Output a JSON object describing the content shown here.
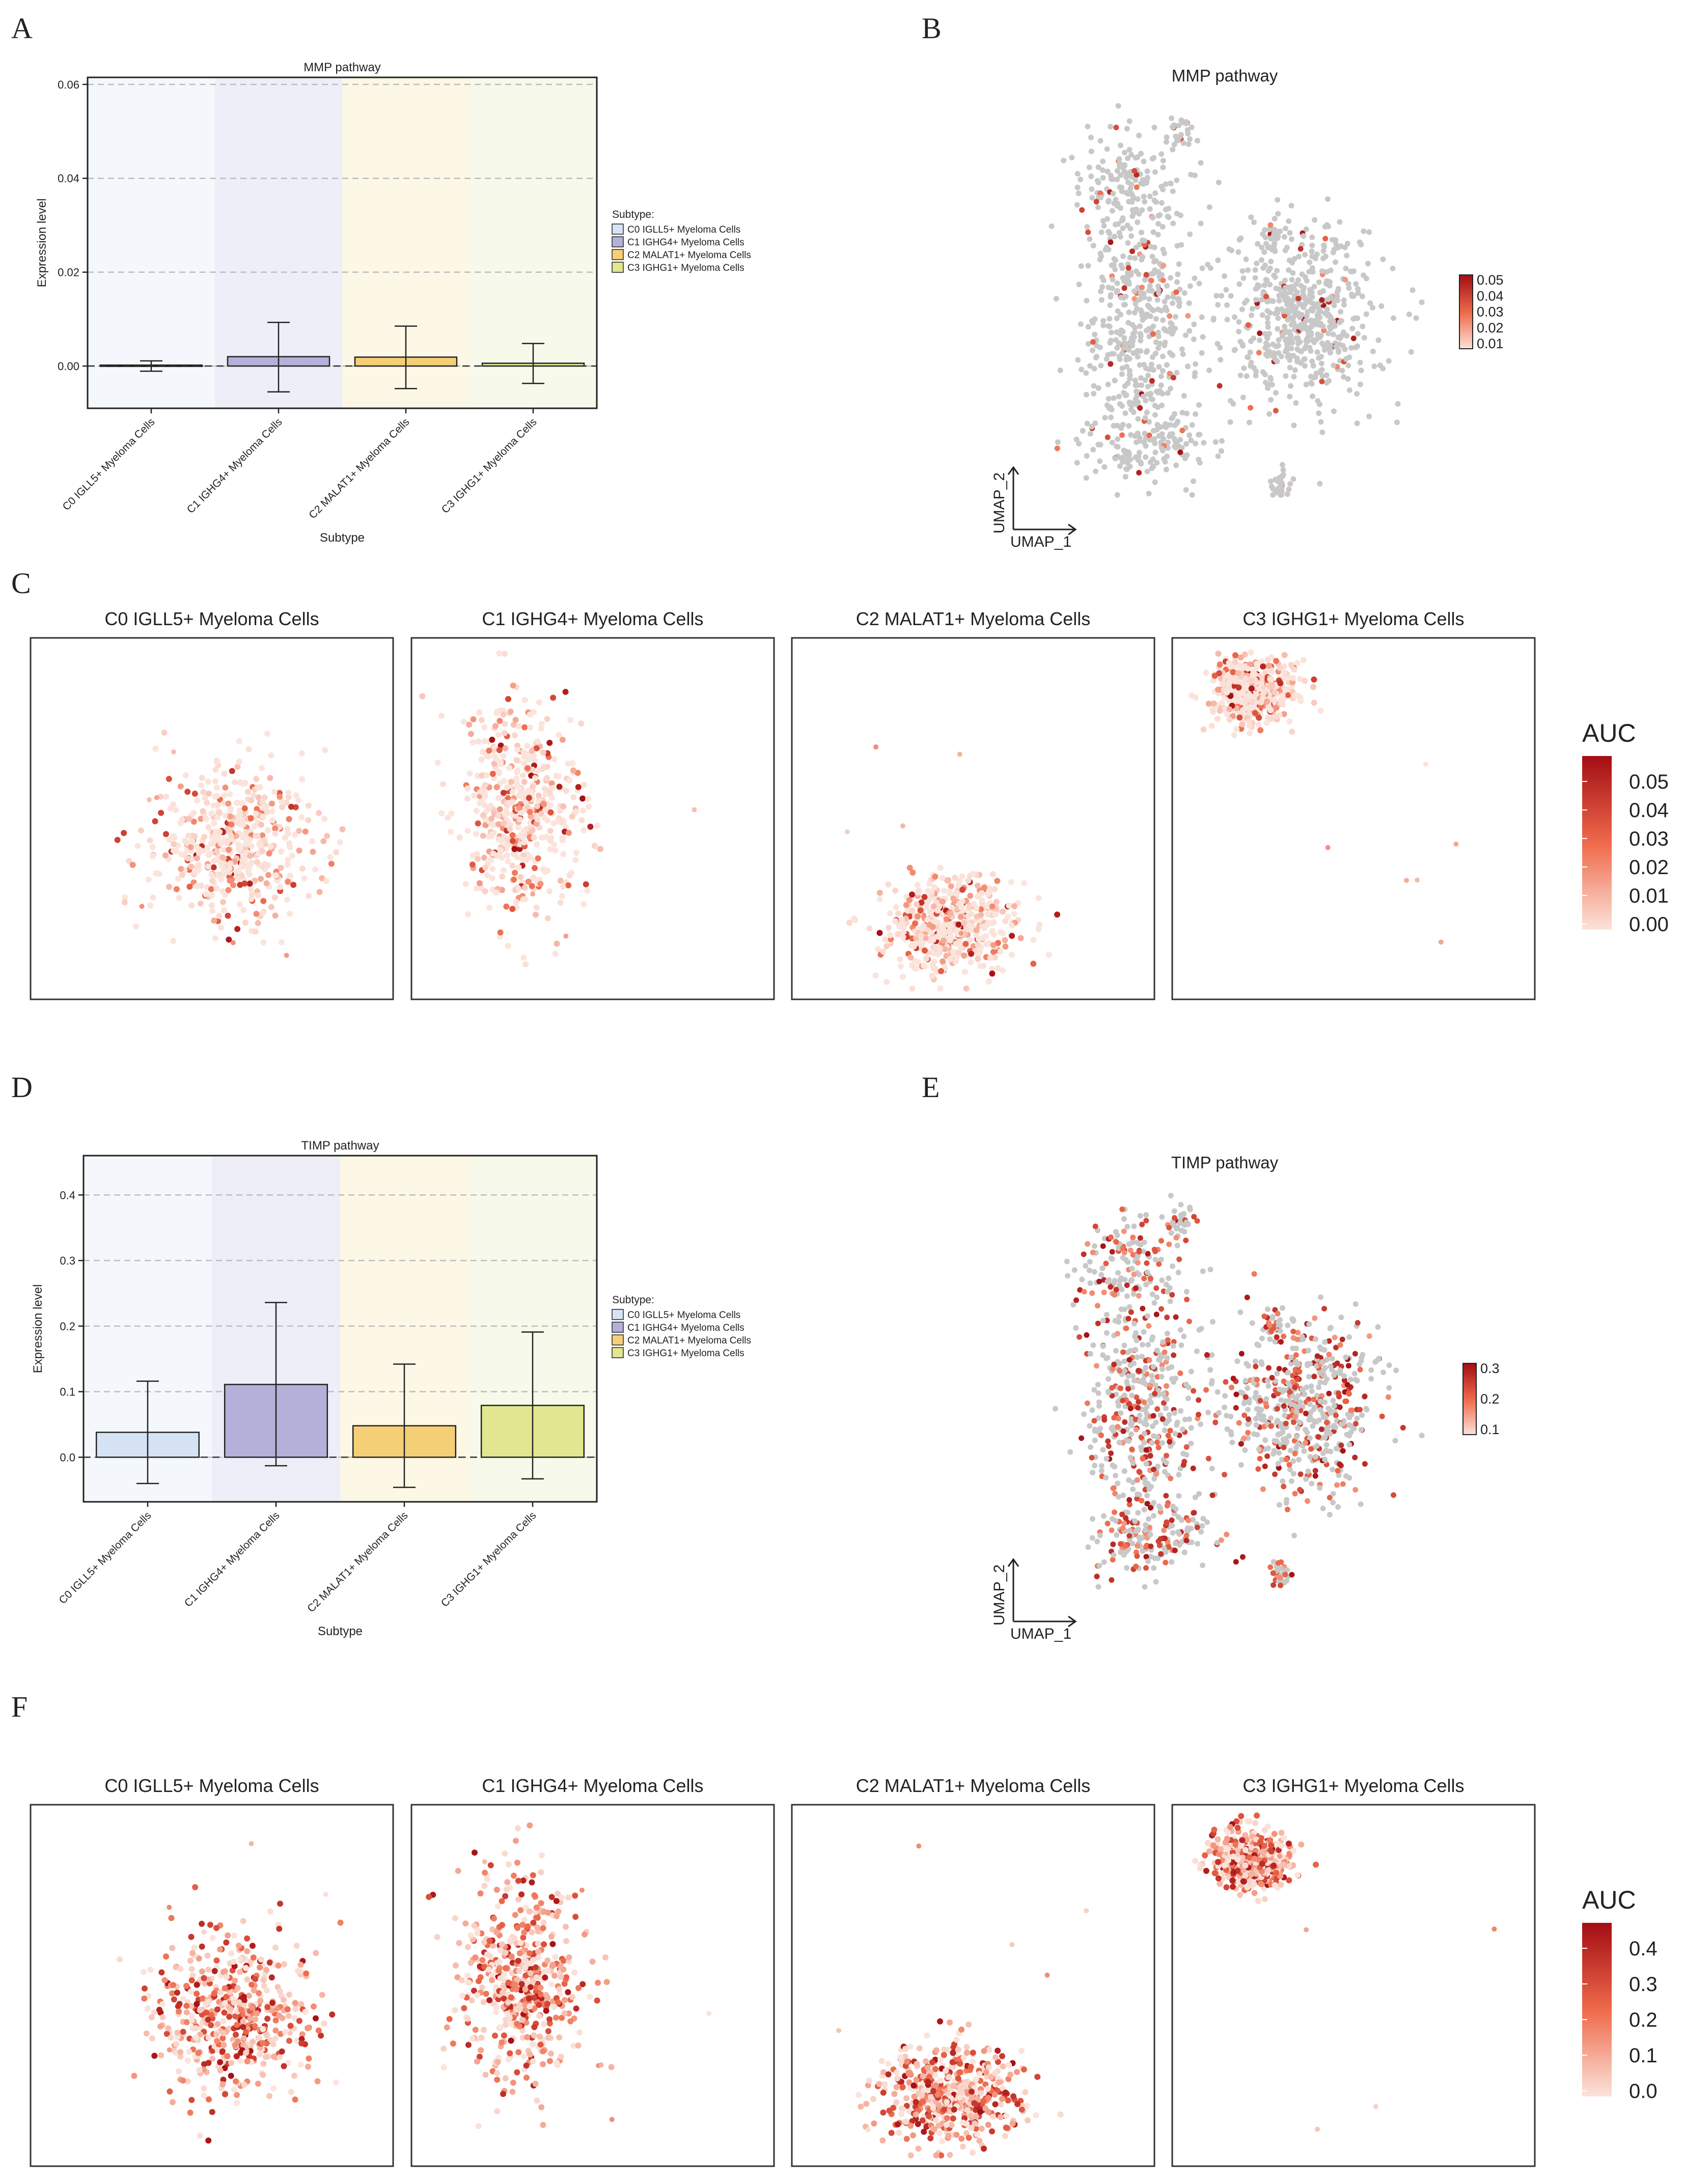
{
  "figure": {
    "panel_letters": [
      "A",
      "B",
      "C",
      "D",
      "E",
      "F"
    ],
    "colors": {
      "C0": "#d5e3f4",
      "C1": "#b3b0d9",
      "C2": "#f5cf76",
      "C3": "#e2e690",
      "bg0": "#f4f8fc",
      "bg1": "#eeeef8",
      "bg2": "#fdf7e6",
      "bg3": "#f7f9ea",
      "grey_point": "#c8c8c8",
      "red_low": "#fbe4dc",
      "red_mid": "#ef6b4c",
      "red_high": "#a50f15"
    }
  },
  "chart_data": [
    {
      "panel": "A",
      "type": "bar",
      "title": "MMP pathway",
      "xlabel": "Subtype",
      "ylabel": "Expression level",
      "categories": [
        "C0 IGLL5+ Myeloma Cells",
        "C1 IGHG4+ Myeloma Cells",
        "C2 MALAT1+ Myeloma Cells",
        "C3 IGHG1+ Myeloma Cells"
      ],
      "values": [
        0.0002,
        0.002,
        0.0019,
        0.0006
      ],
      "errors_low": [
        -0.0011,
        -0.0055,
        -0.0048,
        -0.0037
      ],
      "errors_high": [
        0.0011,
        0.0093,
        0.0085,
        0.0048
      ],
      "ylim": [
        -0.009,
        0.0615
      ],
      "yticks": [
        0.0,
        0.02,
        0.04,
        0.06
      ],
      "yticklabels": [
        "0.00",
        "0.02",
        "0.04",
        "0.06"
      ],
      "legend_title": "Subtype:",
      "legend": [
        "C0 IGLL5+ Myeloma Cells",
        "C1 IGHG4+ Myeloma Cells",
        "C2 MALAT1+ Myeloma Cells",
        "C3 IGHG1+ Myeloma Cells"
      ]
    },
    {
      "panel": "B",
      "type": "scatter",
      "title": "MMP pathway",
      "xlabel": "UMAP_1",
      "ylabel": "UMAP_2",
      "colorbar_ticks": [
        "0.05",
        "0.04",
        "0.03",
        "0.02",
        "0.01"
      ],
      "fraction_colored": 0.06
    },
    {
      "panel": "C",
      "type": "scatter",
      "title": "",
      "facets": [
        "C0 IGLL5+ Myeloma Cells",
        "C1 IGHG4+ Myeloma Cells",
        "C2 MALAT1+ Myeloma Cells",
        "C3 IGHG1+ Myeloma Cells"
      ],
      "colorbar_title": "AUC",
      "colorbar_ticks": [
        "0.05",
        "0.04",
        "0.03",
        "0.02",
        "0.01",
        "0.00"
      ],
      "vmax": 0.058
    },
    {
      "panel": "D",
      "type": "bar",
      "title": "TIMP pathway",
      "xlabel": "Subtype",
      "ylabel": "Expression level",
      "categories": [
        "C0 IGLL5+ Myeloma Cells",
        "C1 IGHG4+ Myeloma Cells",
        "C2 MALAT1+ Myeloma Cells",
        "C3 IGHG1+ Myeloma Cells"
      ],
      "values": [
        0.038,
        0.111,
        0.048,
        0.079
      ],
      "errors_low": [
        -0.04,
        -0.013,
        -0.046,
        -0.033
      ],
      "errors_high": [
        0.116,
        0.236,
        0.142,
        0.191
      ],
      "ylim": [
        -0.068,
        0.46
      ],
      "yticks": [
        0.0,
        0.1,
        0.2,
        0.3,
        0.4
      ],
      "yticklabels": [
        "0.0",
        "0.1",
        "0.2",
        "0.3",
        "0.4"
      ],
      "legend_title": "Subtype:",
      "legend": [
        "C0 IGLL5+ Myeloma Cells",
        "C1 IGHG4+ Myeloma Cells",
        "C2 MALAT1+ Myeloma Cells",
        "C3 IGHG1+ Myeloma Cells"
      ]
    },
    {
      "panel": "E",
      "type": "scatter",
      "title": "TIMP pathway",
      "xlabel": "UMAP_1",
      "ylabel": "UMAP_2",
      "colorbar_ticks": [
        "0.3",
        "0.2",
        "0.1"
      ],
      "fraction_colored": 0.38
    },
    {
      "panel": "F",
      "type": "scatter",
      "title": "",
      "facets": [
        "C0 IGLL5+ Myeloma Cells",
        "C1 IGHG4+ Myeloma Cells",
        "C2 MALAT1+ Myeloma Cells",
        "C3 IGHG1+ Myeloma Cells"
      ],
      "colorbar_title": "AUC",
      "colorbar_ticks": [
        "0.4",
        "0.3",
        "0.2",
        "0.1",
        "0.0"
      ],
      "vmax": 0.42
    }
  ]
}
